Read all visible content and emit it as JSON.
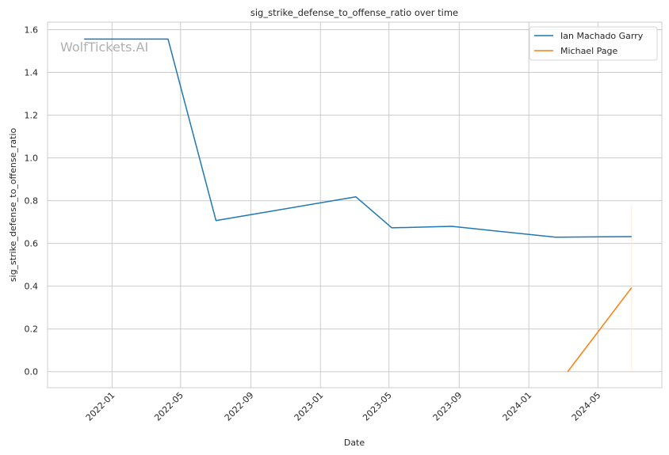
{
  "chart_data": {
    "type": "line",
    "title": "sig_strike_defense_to_offense_ratio over time",
    "xlabel": "Date",
    "ylabel": "sig_strike_defense_to_offense_ratio",
    "watermark": "WolfTickets.AI",
    "xlim": [
      "2021-09-10",
      "2024-08-21"
    ],
    "ylim": [
      -0.075,
      1.635
    ],
    "x_ticks": [
      "2022-01-01",
      "2022-05-01",
      "2022-09-01",
      "2023-01-01",
      "2023-05-01",
      "2023-09-01",
      "2024-01-01",
      "2024-05-01"
    ],
    "x_tick_labels": [
      "2022-01",
      "2022-05",
      "2022-09",
      "2023-01",
      "2023-05",
      "2023-09",
      "2024-01",
      "2024-05"
    ],
    "y_ticks": [
      0.0,
      0.2,
      0.4,
      0.6,
      0.8,
      1.0,
      1.2,
      1.4,
      1.6
    ],
    "y_tick_labels": [
      "0.0",
      "0.2",
      "0.4",
      "0.6",
      "0.8",
      "1.0",
      "1.2",
      "1.4",
      "1.6"
    ],
    "grid": true,
    "legend_position": "top-right",
    "series": [
      {
        "name": "Ian Machado Garry",
        "color": "#1f77b4",
        "x": [
          "2021-11-13",
          "2022-04-09",
          "2022-07-02",
          "2023-03-04",
          "2023-05-06",
          "2023-08-19",
          "2024-02-17",
          "2024-06-29"
        ],
        "y": [
          1.556,
          1.556,
          0.707,
          0.818,
          0.673,
          0.68,
          0.629,
          0.632
        ]
      },
      {
        "name": "Michael Page",
        "color": "#ff7f0e",
        "x": [
          "2024-03-09",
          "2024-06-29"
        ],
        "y": [
          0.0,
          0.393
        ]
      }
    ],
    "annotations": [
      {
        "type": "vertical-line",
        "x": "2024-06-29",
        "y_range": [
          0.0,
          0.78
        ],
        "color": "#fde8d4"
      }
    ]
  }
}
